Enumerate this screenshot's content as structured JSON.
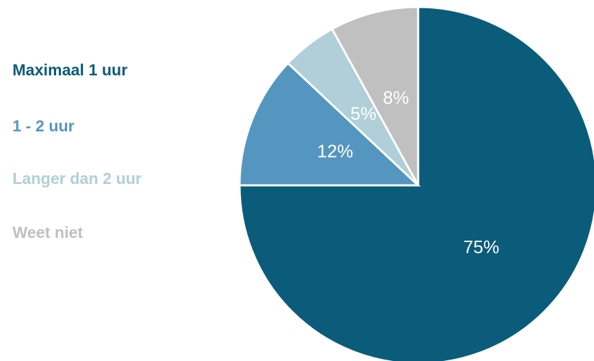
{
  "chart_data": {
    "type": "pie",
    "categories": [
      "Maximaal 1 uur",
      "1 - 2 uur",
      "Langer dan 2 uur",
      "Weet niet"
    ],
    "values": [
      75,
      12,
      5,
      8
    ],
    "value_labels": [
      "75%",
      "12%",
      "5%",
      "8%"
    ],
    "colors": [
      "#0b5c7a",
      "#5496c0",
      "#b0cfd8",
      "#c0c0c0"
    ]
  }
}
